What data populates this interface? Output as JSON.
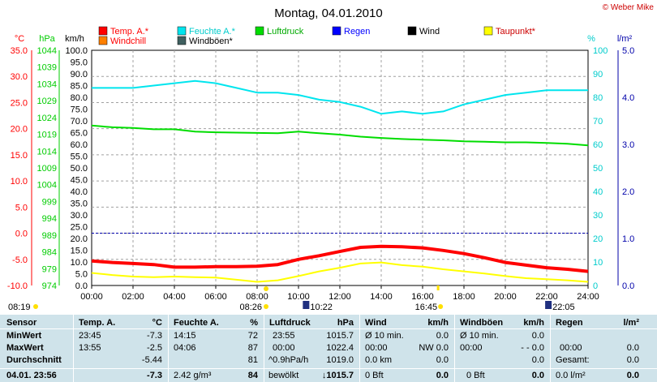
{
  "chart_data": {
    "type": "line",
    "title": "Montag, 04.01.2010",
    "credit": "© Weber Mike",
    "x_ticks": [
      "00:00",
      "02:00",
      "04:00",
      "06:00",
      "08:00",
      "10:00",
      "12:00",
      "14:00",
      "16:00",
      "18:00",
      "20:00",
      "22:00",
      "24:00"
    ],
    "xlim": [
      0,
      24
    ],
    "axes": {
      "temp": {
        "unit": "°C",
        "ticks": [
          "35.0",
          "30.0",
          "25.0",
          "20.0",
          "15.0",
          "10.0",
          "5.0",
          "0.0",
          "-5.0",
          "-10.0"
        ],
        "range": [
          -10,
          35
        ],
        "color": "#ff0000"
      },
      "pressure": {
        "unit": "hPa",
        "ticks": [
          "1044",
          "1039",
          "1034",
          "1029",
          "1024",
          "1019",
          "1014",
          "1009",
          "1004",
          "999",
          "994",
          "989",
          "984",
          "979",
          "974"
        ],
        "range": [
          974,
          1044
        ],
        "color": "#00cc00"
      },
      "wind": {
        "unit": "km/h",
        "ticks": [
          "100.0",
          "95.0",
          "90.0",
          "85.0",
          "80.0",
          "75.0",
          "70.0",
          "65.0",
          "60.0",
          "55.0",
          "50.0",
          "45.0",
          "40.0",
          "35.0",
          "30.0",
          "25.0",
          "20.0",
          "15.0",
          "10.0",
          "5.0",
          "0.0"
        ],
        "range": [
          0,
          100
        ],
        "color": "#000000"
      },
      "humidity": {
        "unit": "%",
        "ticks": [
          "100",
          "90",
          "80",
          "70",
          "60",
          "50",
          "40",
          "30",
          "20",
          "10",
          "0"
        ],
        "range": [
          0,
          100
        ],
        "color": "#00cccc"
      },
      "radiation": {
        "unit": "l/m²",
        "ticks": [
          "5.0",
          "4.0",
          "3.0",
          "2.0",
          "1.0",
          "0.0"
        ],
        "range": [
          0,
          5
        ],
        "color": "#0000aa"
      }
    },
    "legend": [
      {
        "name": "Temp. A.*",
        "color": "#ff0000",
        "text_color": "#ff0000"
      },
      {
        "name": "Feuchte A.*",
        "color": "#00e5ee",
        "text_color": "#00cccc"
      },
      {
        "name": "Luftdruck",
        "color": "#00dd00",
        "text_color": "#00aa00"
      },
      {
        "name": "Regen",
        "color": "#0000ff",
        "text_color": "#0000ff"
      },
      {
        "name": "Wind",
        "color": "#000000",
        "text_color": "#000000"
      },
      {
        "name": "Taupunkt*",
        "color": "#ffff00",
        "text_color": "#cc0000"
      },
      {
        "name": "Windchill",
        "color": "#ff8000",
        "text_color": "#ff0000"
      },
      {
        "name": "Windböen*",
        "color": "#406060",
        "text_color": "#000000"
      }
    ],
    "series": [
      {
        "name": "Temp. A.*",
        "axis": "temp",
        "color": "#ff0000",
        "width": 4,
        "x": [
          0,
          1,
          2,
          3,
          4,
          5,
          6,
          7,
          8,
          9,
          10,
          11,
          12,
          13,
          14,
          15,
          16,
          17,
          18,
          19,
          20,
          21,
          22,
          23,
          24
        ],
        "values": [
          -5.3,
          -5.6,
          -5.8,
          -6.0,
          -6.5,
          -6.5,
          -6.4,
          -6.4,
          -6.3,
          -6.0,
          -5.0,
          -4.3,
          -3.5,
          -2.7,
          -2.5,
          -2.6,
          -2.8,
          -3.3,
          -3.9,
          -4.7,
          -5.6,
          -6.1,
          -6.6,
          -6.9,
          -7.3
        ]
      },
      {
        "name": "Taupunkt*",
        "axis": "temp",
        "color": "#ffff00",
        "width": 2,
        "x": [
          0,
          1,
          2,
          3,
          4,
          5,
          6,
          7,
          8,
          9,
          10,
          11,
          12,
          13,
          14,
          15,
          16,
          17,
          18,
          19,
          20,
          21,
          22,
          23,
          24
        ],
        "values": [
          -7.6,
          -8.0,
          -8.3,
          -8.4,
          -8.3,
          -8.4,
          -8.5,
          -8.9,
          -9.3,
          -9.0,
          -8.2,
          -7.3,
          -6.6,
          -5.8,
          -5.6,
          -6.1,
          -6.4,
          -6.9,
          -7.3,
          -7.7,
          -8.2,
          -8.6,
          -8.8,
          -9.0,
          -9.3
        ]
      },
      {
        "name": "Feuchte A.*",
        "axis": "humidity",
        "color": "#00e5ee",
        "width": 2,
        "x": [
          0,
          1,
          2,
          3,
          4,
          5,
          6,
          7,
          8,
          9,
          10,
          11,
          12,
          13,
          14,
          15,
          16,
          17,
          18,
          19,
          20,
          21,
          22,
          23,
          24
        ],
        "values": [
          84,
          84,
          84,
          85,
          86,
          87,
          86,
          84,
          82,
          82,
          81,
          79,
          78,
          76,
          73,
          74,
          73,
          74,
          77,
          79,
          81,
          82,
          83,
          83,
          83
        ]
      },
      {
        "name": "Luftdruck",
        "axis": "pressure",
        "color": "#00dd00",
        "width": 2,
        "x": [
          0,
          1,
          2,
          3,
          4,
          5,
          6,
          7,
          8,
          9,
          10,
          11,
          12,
          13,
          14,
          15,
          16,
          17,
          18,
          19,
          20,
          21,
          22,
          23,
          24
        ],
        "values": [
          1021.6,
          1021.1,
          1020.9,
          1020.5,
          1020.5,
          1019.8,
          1019.6,
          1019.5,
          1019.4,
          1019.3,
          1019.8,
          1019.3,
          1018.9,
          1018.3,
          1017.9,
          1017.6,
          1017.4,
          1017.2,
          1016.9,
          1016.8,
          1016.6,
          1016.6,
          1016.4,
          1016.2,
          1015.7
        ]
      }
    ],
    "reference_lines": [
      {
        "axis": "temp",
        "value": 0.0,
        "color": "#0000aa",
        "style": "dashed"
      }
    ],
    "sun_events": [
      {
        "time": 8.317,
        "label": "08:19",
        "type": "dawn"
      },
      {
        "time": 8.433,
        "label": "08:26",
        "type": "sunrise"
      },
      {
        "time": 10.367,
        "label": "10:22",
        "type": "max-elevation"
      },
      {
        "time": 16.75,
        "label": "16:45",
        "type": "sunset"
      },
      {
        "time": 22.083,
        "label": "22:05",
        "type": "moon"
      }
    ]
  },
  "stats": {
    "headers": {
      "sensor": "Sensor",
      "temp": "Temp. A.",
      "temp_unit": "°C",
      "hum": "Feuchte A.",
      "hum_unit": "%",
      "press": "Luftdruck",
      "press_unit": "hPa",
      "wind": "Wind",
      "wind_unit": "km/h",
      "gust": "Windböen",
      "gust_unit": "km/h",
      "rain": "Regen",
      "rain_unit": "l/m²"
    },
    "rows": [
      {
        "label": "MinWert",
        "temp_time": "23:45",
        "temp_val": "-7.3",
        "hum_time": "14:15",
        "hum_val": "72",
        "press_time": "23:55",
        "press_val": "1015.7",
        "wind_a": "Ø 10 min.",
        "wind_val": "0.0",
        "gust_a": "Ø 10 min.",
        "gust_val": "0.0",
        "rain_a": "",
        "rain_val": ""
      },
      {
        "label": "MaxWert",
        "temp_time": "13:55",
        "temp_val": "-2.5",
        "hum_time": "04:06",
        "hum_val": "87",
        "press_time": "00:00",
        "press_val": "1022.4",
        "wind_a": "00:00",
        "wind_val": "NW 0.0",
        "gust_a": "00:00",
        "gust_val": "- - 0.0",
        "rain_a": "00:00",
        "rain_val": "0.0"
      },
      {
        "label": "Durchschnitt",
        "temp_time": "",
        "temp_val": "-5.44",
        "hum_time": "",
        "hum_val": "81",
        "press_time": "^0.9hPa/h",
        "press_val": "1019.0",
        "wind_a": "0.0 km",
        "wind_val": "0.0",
        "gust_a": "",
        "gust_val": "0.0",
        "rain_a": "Gesamt:",
        "rain_val": "0.0"
      },
      {
        "label": "04.01. 23:56",
        "temp_time": "",
        "temp_val": "-7.3",
        "hum_time": "2.42 g/m³",
        "hum_val": "84",
        "press_time": "bewölkt",
        "press_val": "↓1015.7",
        "wind_a": "0 Bft",
        "wind_val": "0.0",
        "gust_a": "0 Bft",
        "gust_val": "0.0",
        "rain_a": "0.0 l/m²",
        "rain_val": "0.0"
      }
    ]
  }
}
